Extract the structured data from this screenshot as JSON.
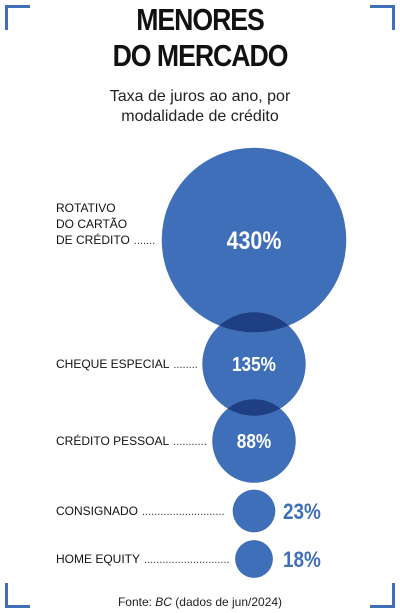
{
  "title_lines": [
    "MENORES",
    "DO MERCADO"
  ],
  "subtitle_lines": [
    "Taxa de juros ao ano, por",
    "modalidade de crédito"
  ],
  "source": {
    "prefix": "Fonte: ",
    "name": "BC",
    "suffix": " (dados de jun/2024)"
  },
  "colors": {
    "bubble": "#3f6fb8",
    "overlap": "#1f3f85",
    "accent": "#3f6fb8"
  },
  "chart_data": {
    "type": "bubble",
    "title": "MENORES DO MERCADO",
    "subtitle": "Taxa de juros ao ano, por modalidade de crédito",
    "unit": "%",
    "categories": [
      {
        "label_lines": [
          "ROTATIVO",
          "DO CARTÃO",
          "DE CRÉDITO"
        ],
        "value": 430,
        "display": "430%"
      },
      {
        "label_lines": [
          "CHEQUE ESPECIAL"
        ],
        "value": 135,
        "display": "135%"
      },
      {
        "label_lines": [
          "CRÉDITO PESSOAL"
        ],
        "value": 88,
        "display": "88%"
      },
      {
        "label_lines": [
          "CONSIGNADO"
        ],
        "value": 23,
        "display": "23%"
      },
      {
        "label_lines": [
          "HOME EQUITY"
        ],
        "value": 18,
        "display": "18%"
      }
    ]
  }
}
